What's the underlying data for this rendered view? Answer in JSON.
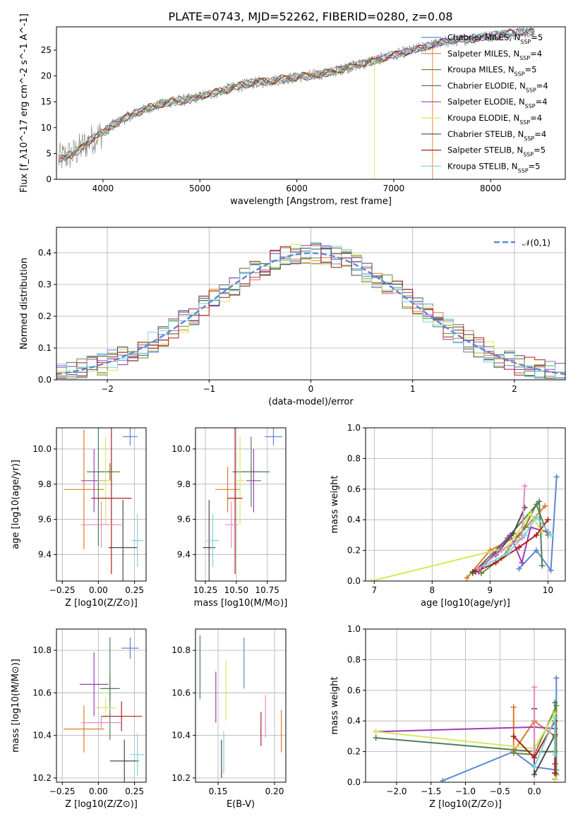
{
  "title": "PLATE=0743, MJD=52262, FIBERID=0280, z=0.08",
  "colors": {
    "blue": "#5b86d8",
    "orange": "#e07b2a",
    "olive": "#6a8a3a",
    "green": "#4f7f5a",
    "purple": "#9a3fb5",
    "yellow": "#d8e85a",
    "dark": "#4a4a4a",
    "red": "#b01e1e",
    "cyan": "#7ad5e0",
    "pink": "#e88ac0",
    "gray": "#7f7f7f"
  },
  "chart_data": [
    {
      "id": "spectrum",
      "type": "line",
      "xlabel": "wavelength [Angstrom, rest frame]",
      "ylabel": "Flux [f_λ10^-17 erg cm^-2 s^-1 A^-1]",
      "xlim": [
        3520,
        8770
      ],
      "ylim": [
        0,
        29.5
      ],
      "xticks": [
        4000,
        5000,
        6000,
        7000,
        8000
      ],
      "yticks": [
        0,
        5,
        10,
        15,
        20,
        25
      ],
      "grid": false,
      "legend_placement": "right",
      "continuum": {
        "x": [
          3550,
          3700,
          3800,
          3900,
          4000,
          4100,
          4200,
          4300,
          4500,
          4700,
          4900,
          5100,
          5300,
          5500,
          5700,
          5900,
          6100,
          6300,
          6500,
          6700,
          6900,
          7100,
          7300,
          7500,
          7700,
          7900,
          8100,
          8300
        ],
        "y": [
          4,
          5,
          6.5,
          8,
          9,
          10.5,
          11.5,
          12.5,
          14,
          15,
          15.5,
          16.5,
          17.5,
          18.5,
          19,
          19.5,
          20,
          20.5,
          21.5,
          22.5,
          23.5,
          24.5,
          25.5,
          26.5,
          27,
          27.5,
          28,
          28.5
        ]
      },
      "series": [
        {
          "name": "Chabrier MILES, N_SSP=5",
          "color": "#5b86d8"
        },
        {
          "name": "Salpeter MILES, N_SSP=4",
          "color": "#e07b2a"
        },
        {
          "name": "Kroupa MILES, N_SSP=5",
          "color": "#6a8a3a"
        },
        {
          "name": "Chabrier ELODIE, N_SSP=4",
          "color": "#4f7f5a"
        },
        {
          "name": "Salpeter ELODIE, N_SSP=4",
          "color": "#9a3fb5"
        },
        {
          "name": "Kroupa ELODIE, N_SSP=4",
          "color": "#d8e85a"
        },
        {
          "name": "Chabrier STELIB, N_SSP=4",
          "color": "#4a4a4a"
        },
        {
          "name": "Salpeter STELIB, N_SSP=5",
          "color": "#b01e1e"
        },
        {
          "name": "Kroupa STELIB, N_SSP=5",
          "color": "#7ad5e0"
        }
      ]
    },
    {
      "id": "residuals",
      "type": "bar",
      "xlabel": "(data-model)/error",
      "ylabel": "Normed distribution",
      "xlim": [
        -2.5,
        2.5
      ],
      "ylim": [
        0,
        0.48
      ],
      "xticks": [
        -2,
        -1,
        0,
        1,
        2
      ],
      "yticks": [
        0.0,
        0.1,
        0.2,
        0.3,
        0.4
      ],
      "grid": true,
      "legend_placement": "top-right",
      "reference": {
        "name": "N(0,1)",
        "mu": 0,
        "sigma": 1,
        "color": "#5b86d8"
      },
      "bin_width": 0.1,
      "series": [
        {
          "color": "#5b86d8",
          "seed": 1
        },
        {
          "color": "#e07b2a",
          "seed": 2
        },
        {
          "color": "#6a8a3a",
          "seed": 3
        },
        {
          "color": "#4f7f5a",
          "seed": 4
        },
        {
          "color": "#9a3fb5",
          "seed": 5
        },
        {
          "color": "#d8e85a",
          "seed": 6
        },
        {
          "color": "#4a4a4a",
          "seed": 7
        },
        {
          "color": "#b01e1e",
          "seed": 8
        },
        {
          "color": "#7ad5e0",
          "seed": 9
        }
      ]
    },
    {
      "id": "z-vs-age",
      "type": "scatter",
      "xlabel": "Z [log10(Z/Z⊙)]",
      "ylabel": "age [log10(age/yr)]",
      "xlim": [
        -0.29,
        0.33
      ],
      "ylim": [
        9.25,
        10.12
      ],
      "xticks": [
        -0.25,
        0.0,
        0.25
      ],
      "yticks": [
        9.4,
        9.6,
        9.8,
        10.0
      ],
      "grid": true,
      "points": [
        {
          "x": 0.22,
          "y": 10.07,
          "xerr": 0.05,
          "yerr": 0.05,
          "color": "#5b86d8"
        },
        {
          "x": -0.1,
          "y": 9.77,
          "xerr": 0.14,
          "yerr": 0.34,
          "color": "#e07b2a"
        },
        {
          "x": 0.08,
          "y": 9.87,
          "xerr": 0.07,
          "yerr": 0.05,
          "color": "#6a8a3a"
        },
        {
          "x": 0.0,
          "y": 9.87,
          "xerr": 0.08,
          "yerr": 0.42,
          "color": "#4f7f5a"
        },
        {
          "x": -0.03,
          "y": 9.82,
          "xerr": 0.09,
          "yerr": 0.18,
          "color": "#9a3fb5"
        },
        {
          "x": 0.05,
          "y": 9.82,
          "xerr": 0.05,
          "yerr": 0.25,
          "color": "#d8e85a"
        },
        {
          "x": 0.17,
          "y": 9.44,
          "xerr": 0.1,
          "yerr": 0.27,
          "color": "#4a4a4a"
        },
        {
          "x": 0.09,
          "y": 9.72,
          "xerr": 0.14,
          "yerr": 0.43,
          "color": "#b01e1e"
        },
        {
          "x": 0.27,
          "y": 9.48,
          "xerr": 0.04,
          "yerr": 0.15,
          "color": "#7ad5e0"
        },
        {
          "x": 0.02,
          "y": 9.57,
          "xerr": 0.14,
          "yerr": 0.13,
          "color": "#e88ac0"
        }
      ]
    },
    {
      "id": "mass-vs-age",
      "type": "scatter",
      "xlabel": "mass [log10(M/M⊙)]",
      "ylabel": "",
      "xlim": [
        10.17,
        10.9
      ],
      "ylim": [
        9.25,
        10.12
      ],
      "xticks": [
        10.25,
        10.5,
        10.75
      ],
      "yticks": [
        9.4,
        9.6,
        9.8,
        10.0
      ],
      "grid": true,
      "points": [
        {
          "x": 10.8,
          "y": 10.07,
          "xerr": 0.07,
          "yerr": 0.05,
          "color": "#5b86d8"
        },
        {
          "x": 10.43,
          "y": 9.77,
          "xerr": 0.1,
          "yerr": 0.13,
          "color": "#e07b2a"
        },
        {
          "x": 10.62,
          "y": 9.87,
          "xerr": 0.08,
          "yerr": 0.05,
          "color": "#6a8a3a"
        },
        {
          "x": 10.62,
          "y": 9.87,
          "xerr": 0.15,
          "yerr": 0.2,
          "color": "#4f7f5a"
        },
        {
          "x": 10.64,
          "y": 9.82,
          "xerr": 0.06,
          "yerr": 0.18,
          "color": "#9a3fb5"
        },
        {
          "x": 10.53,
          "y": 9.82,
          "xerr": 0.04,
          "yerr": 0.25,
          "color": "#d8e85a"
        },
        {
          "x": 10.28,
          "y": 9.44,
          "xerr": 0.05,
          "yerr": 0.27,
          "color": "#4a4a4a"
        },
        {
          "x": 10.49,
          "y": 9.72,
          "xerr": 0.06,
          "yerr": 0.43,
          "color": "#b01e1e"
        },
        {
          "x": 10.31,
          "y": 9.48,
          "xerr": 0.05,
          "yerr": 0.15,
          "color": "#7ad5e0"
        },
        {
          "x": 10.46,
          "y": 9.57,
          "xerr": 0.05,
          "yerr": 0.13,
          "color": "#e88ac0"
        }
      ]
    },
    {
      "id": "sfh-age",
      "type": "line",
      "xlabel": "age [log10(age/yr)]",
      "ylabel": "mass weight",
      "xlim": [
        6.85,
        10.3
      ],
      "ylim": [
        0,
        1.0
      ],
      "xticks": [
        7,
        8,
        9,
        10
      ],
      "yticks": [
        0.0,
        0.2,
        0.4,
        0.6,
        0.8,
        1.0
      ],
      "grid": true,
      "series": [
        {
          "color": "#5b86d8",
          "x": [
            9.5,
            9.8,
            10.05,
            10.15
          ],
          "y": [
            0.08,
            0.2,
            0.07,
            0.68
          ]
        },
        {
          "color": "#e07b2a",
          "x": [
            8.6,
            9.0,
            9.5,
            9.95
          ],
          "y": [
            0.02,
            0.2,
            0.3,
            0.49
          ]
        },
        {
          "color": "#6a8a3a",
          "x": [
            8.85,
            9.2,
            9.6,
            9.8,
            10.0
          ],
          "y": [
            0.05,
            0.15,
            0.35,
            0.5,
            0.3
          ]
        },
        {
          "color": "#4f7f5a",
          "x": [
            8.7,
            9.3,
            9.85,
            9.9
          ],
          "y": [
            0.05,
            0.28,
            0.52,
            0.1
          ]
        },
        {
          "color": "#9a3fb5",
          "x": [
            8.8,
            9.35,
            9.55,
            9.7,
            10.0
          ],
          "y": [
            0.06,
            0.3,
            0.12,
            0.35,
            0.32
          ]
        },
        {
          "color": "#d8e85a",
          "x": [
            6.95,
            9.3,
            9.7,
            9.9
          ],
          "y": [
            0.0,
            0.22,
            0.44,
            0.32
          ]
        },
        {
          "color": "#4a4a4a",
          "x": [
            8.7,
            9.1,
            9.4,
            9.6
          ],
          "y": [
            0.06,
            0.17,
            0.31,
            0.48
          ]
        },
        {
          "color": "#b01e1e",
          "x": [
            8.75,
            9.1,
            9.5,
            9.8,
            10.0
          ],
          "y": [
            0.06,
            0.12,
            0.22,
            0.3,
            0.4
          ]
        },
        {
          "color": "#7ad5e0",
          "x": [
            8.9,
            9.3,
            9.6,
            9.8,
            10.05
          ],
          "y": [
            0.1,
            0.18,
            0.3,
            0.42,
            0.3
          ]
        },
        {
          "color": "#e88ac0",
          "x": [
            8.8,
            9.2,
            9.55,
            9.6
          ],
          "y": [
            0.08,
            0.2,
            0.28,
            0.62
          ]
        }
      ]
    },
    {
      "id": "z-vs-mass",
      "type": "scatter",
      "xlabel": "Z [log10(Z/Z⊙)]",
      "ylabel": "mass [log10(M/M⊙)]",
      "xlim": [
        -0.29,
        0.33
      ],
      "ylim": [
        10.18,
        10.9
      ],
      "xticks": [
        -0.25,
        0.0,
        0.25
      ],
      "yticks": [
        10.2,
        10.4,
        10.6,
        10.8
      ],
      "grid": true,
      "points": [
        {
          "x": 0.22,
          "y": 10.81,
          "xerr": 0.06,
          "yerr": 0.05,
          "color": "#5b86d8"
        },
        {
          "x": -0.1,
          "y": 10.43,
          "xerr": 0.14,
          "yerr": 0.11,
          "color": "#e07b2a"
        },
        {
          "x": 0.08,
          "y": 10.62,
          "xerr": 0.07,
          "yerr": 0.06,
          "color": "#6a8a3a"
        },
        {
          "x": 0.08,
          "y": 10.62,
          "xerr": 0.05,
          "yerr": 0.24,
          "color": "#4f7f5a"
        },
        {
          "x": -0.03,
          "y": 10.64,
          "xerr": 0.1,
          "yerr": 0.15,
          "color": "#9a3fb5"
        },
        {
          "x": 0.05,
          "y": 10.53,
          "xerr": 0.07,
          "yerr": 0.05,
          "color": "#d8e85a"
        },
        {
          "x": 0.18,
          "y": 10.28,
          "xerr": 0.1,
          "yerr": 0.1,
          "color": "#4a4a4a"
        },
        {
          "x": 0.16,
          "y": 10.49,
          "xerr": 0.14,
          "yerr": 0.07,
          "color": "#b01e1e"
        },
        {
          "x": 0.27,
          "y": 10.31,
          "xerr": 0.05,
          "yerr": 0.1,
          "color": "#7ad5e0"
        },
        {
          "x": 0.02,
          "y": 10.46,
          "xerr": 0.14,
          "yerr": 0.03,
          "color": "#e88ac0"
        }
      ]
    },
    {
      "id": "ebv-vs-mass",
      "type": "scatter",
      "xlabel": "E(B-V)",
      "ylabel": "",
      "xlim": [
        0.13,
        0.21
      ],
      "ylim": [
        10.18,
        10.9
      ],
      "xticks": [
        0.15,
        0.2
      ],
      "yticks": [
        10.2,
        10.4,
        10.6,
        10.8
      ],
      "grid": true,
      "points": [
        {
          "x": 0.173,
          "y": 10.74,
          "xerr": 0.0,
          "yerr": 0.12,
          "color": "#5b86d8"
        },
        {
          "x": 0.206,
          "y": 10.42,
          "xerr": 0.0,
          "yerr": 0.1,
          "color": "#e07b2a"
        },
        {
          "x": 0.134,
          "y": 10.72,
          "xerr": 0.0,
          "yerr": 0.15,
          "color": "#4f7f5a"
        },
        {
          "x": 0.148,
          "y": 10.58,
          "xerr": 0.0,
          "yerr": 0.12,
          "color": "#9a3fb5"
        },
        {
          "x": 0.157,
          "y": 10.61,
          "xerr": 0.0,
          "yerr": 0.14,
          "color": "#d8e85a"
        },
        {
          "x": 0.153,
          "y": 10.29,
          "xerr": 0.0,
          "yerr": 0.09,
          "color": "#4a4a4a"
        },
        {
          "x": 0.188,
          "y": 10.43,
          "xerr": 0.0,
          "yerr": 0.08,
          "color": "#b01e1e"
        },
        {
          "x": 0.155,
          "y": 10.32,
          "xerr": 0.0,
          "yerr": 0.1,
          "color": "#7ad5e0"
        },
        {
          "x": 0.192,
          "y": 10.49,
          "xerr": 0.0,
          "yerr": 0.1,
          "color": "#e88ac0"
        }
      ]
    },
    {
      "id": "sfh-z",
      "type": "line",
      "xlabel": "Z [log10(Z/Z⊙)]",
      "ylabel": "mass weight",
      "xlim": [
        -2.45,
        0.45
      ],
      "ylim": [
        0,
        1.0
      ],
      "xticks": [
        -2.0,
        -1.5,
        -1.0,
        -0.5,
        0.0
      ],
      "yticks": [
        0.0,
        0.2,
        0.4,
        0.6,
        0.8,
        1.0
      ],
      "grid": true,
      "series": [
        {
          "color": "#5b86d8",
          "x": [
            -1.33,
            -0.3,
            0.0,
            0.32,
            0.32
          ],
          "y": [
            0.01,
            0.2,
            0.1,
            0.08,
            0.68
          ]
        },
        {
          "color": "#e07b2a",
          "x": [
            -0.3,
            -0.3,
            0.0,
            0.3,
            0.3
          ],
          "y": [
            0.49,
            0.2,
            0.4,
            0.3,
            0.02
          ]
        },
        {
          "color": "#6a8a3a",
          "x": [
            -0.3,
            0.0,
            0.32,
            0.32
          ],
          "y": [
            0.19,
            0.18,
            0.5,
            0.05
          ]
        },
        {
          "color": "#4f7f5a",
          "x": [
            -2.3,
            0.0,
            0.3,
            0.3
          ],
          "y": [
            0.29,
            0.2,
            0.2,
            0.52
          ]
        },
        {
          "color": "#9a3fb5",
          "x": [
            -2.3,
            0.0,
            0.3,
            0.3
          ],
          "y": [
            0.33,
            0.36,
            0.35,
            0.12
          ]
        },
        {
          "color": "#d8e85a",
          "x": [
            -2.3,
            0.0,
            0.3,
            0.3
          ],
          "y": [
            0.33,
            0.22,
            0.45,
            0.0
          ]
        },
        {
          "color": "#4a4a4a",
          "x": [
            0.0,
            0.0,
            0.3,
            0.3
          ],
          "y": [
            0.48,
            0.05,
            0.31,
            0.06
          ]
        },
        {
          "color": "#b01e1e",
          "x": [
            -0.3,
            0.0,
            0.3,
            0.3
          ],
          "y": [
            0.3,
            0.16,
            0.4,
            0.06
          ]
        },
        {
          "color": "#7ad5e0",
          "x": [
            0.0,
            0.3,
            0.3
          ],
          "y": [
            0.1,
            0.42,
            0.18
          ]
        },
        {
          "color": "#e88ac0",
          "x": [
            0.0,
            0.0
          ],
          "y": [
            0.62,
            0.2
          ]
        }
      ]
    }
  ]
}
